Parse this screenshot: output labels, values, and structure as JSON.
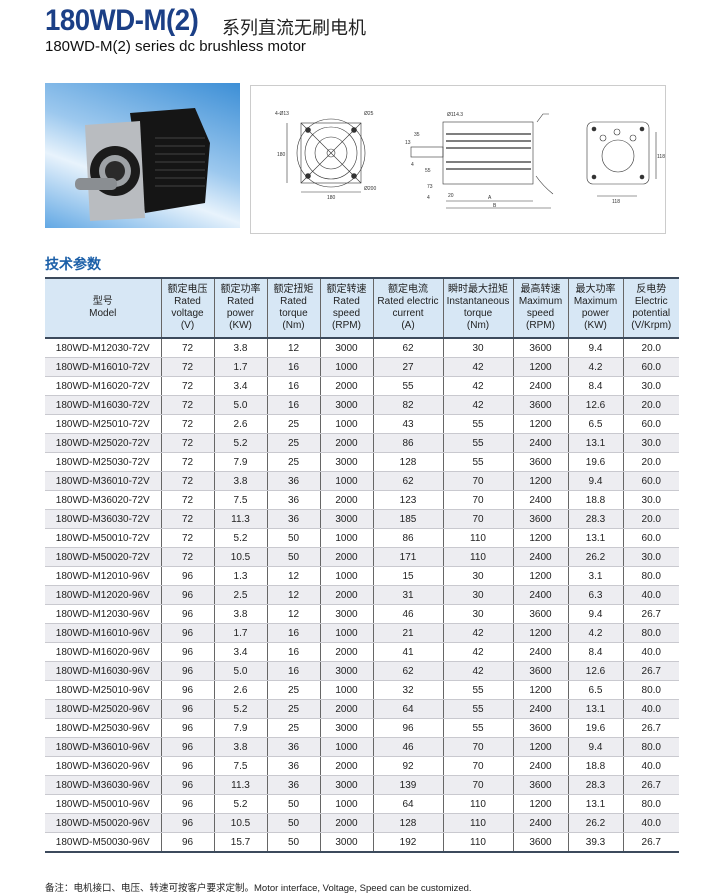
{
  "header": {
    "model_title": "180WD-M(2)",
    "title_cn": "系列直流无刷电机",
    "subtitle": "180WD-M(2) series dc brushless motor"
  },
  "drawing_labels": {
    "front": [
      "4-Ø13",
      "Ø25",
      "180",
      "180",
      "Ø200"
    ],
    "side": [
      "Ø114.3",
      "35",
      "13",
      "4",
      "55",
      "73",
      "4",
      "20",
      "A",
      "B"
    ],
    "rear": [
      "118",
      "118"
    ]
  },
  "section_title": "技术参数",
  "table": {
    "headers": [
      [
        "型号",
        "Model"
      ],
      [
        "额定电压",
        "Rated",
        "voltage",
        "(V)"
      ],
      [
        "额定功率",
        "Rated",
        "power",
        "(KW)"
      ],
      [
        "额定扭矩",
        "Rated",
        "torque",
        "(Nm)"
      ],
      [
        "额定转速",
        "Rated",
        "speed",
        "(RPM)"
      ],
      [
        "额定电流",
        "Rated electric",
        "current",
        "(A)"
      ],
      [
        "瞬时最大扭矩",
        "Instantaneous",
        "torque",
        "(Nm)"
      ],
      [
        "最高转速",
        "Maximum",
        "speed",
        "(RPM)"
      ],
      [
        "最大功率",
        "Maximum",
        "power",
        "(KW)"
      ],
      [
        "反电势",
        "Electric",
        "potential",
        "(V/Krpm)"
      ]
    ],
    "rows": [
      [
        "180WD-M12030-72V",
        "72",
        "3.8",
        "12",
        "3000",
        "62",
        "30",
        "3600",
        "9.4",
        "20.0"
      ],
      [
        "180WD-M16010-72V",
        "72",
        "1.7",
        "16",
        "1000",
        "27",
        "42",
        "1200",
        "4.2",
        "60.0"
      ],
      [
        "180WD-M16020-72V",
        "72",
        "3.4",
        "16",
        "2000",
        "55",
        "42",
        "2400",
        "8.4",
        "30.0"
      ],
      [
        "180WD-M16030-72V",
        "72",
        "5.0",
        "16",
        "3000",
        "82",
        "42",
        "3600",
        "12.6",
        "20.0"
      ],
      [
        "180WD-M25010-72V",
        "72",
        "2.6",
        "25",
        "1000",
        "43",
        "55",
        "1200",
        "6.5",
        "60.0"
      ],
      [
        "180WD-M25020-72V",
        "72",
        "5.2",
        "25",
        "2000",
        "86",
        "55",
        "2400",
        "13.1",
        "30.0"
      ],
      [
        "180WD-M25030-72V",
        "72",
        "7.9",
        "25",
        "3000",
        "128",
        "55",
        "3600",
        "19.6",
        "20.0"
      ],
      [
        "180WD-M36010-72V",
        "72",
        "3.8",
        "36",
        "1000",
        "62",
        "70",
        "1200",
        "9.4",
        "60.0"
      ],
      [
        "180WD-M36020-72V",
        "72",
        "7.5",
        "36",
        "2000",
        "123",
        "70",
        "2400",
        "18.8",
        "30.0"
      ],
      [
        "180WD-M36030-72V",
        "72",
        "11.3",
        "36",
        "3000",
        "185",
        "70",
        "3600",
        "28.3",
        "20.0"
      ],
      [
        "180WD-M50010-72V",
        "72",
        "5.2",
        "50",
        "1000",
        "86",
        "110",
        "1200",
        "13.1",
        "60.0"
      ],
      [
        "180WD-M50020-72V",
        "72",
        "10.5",
        "50",
        "2000",
        "171",
        "110",
        "2400",
        "26.2",
        "30.0"
      ],
      [
        "180WD-M12010-96V",
        "96",
        "1.3",
        "12",
        "1000",
        "15",
        "30",
        "1200",
        "3.1",
        "80.0"
      ],
      [
        "180WD-M12020-96V",
        "96",
        "2.5",
        "12",
        "2000",
        "31",
        "30",
        "2400",
        "6.3",
        "40.0"
      ],
      [
        "180WD-M12030-96V",
        "96",
        "3.8",
        "12",
        "3000",
        "46",
        "30",
        "3600",
        "9.4",
        "26.7"
      ],
      [
        "180WD-M16010-96V",
        "96",
        "1.7",
        "16",
        "1000",
        "21",
        "42",
        "1200",
        "4.2",
        "80.0"
      ],
      [
        "180WD-M16020-96V",
        "96",
        "3.4",
        "16",
        "2000",
        "41",
        "42",
        "2400",
        "8.4",
        "40.0"
      ],
      [
        "180WD-M16030-96V",
        "96",
        "5.0",
        "16",
        "3000",
        "62",
        "42",
        "3600",
        "12.6",
        "26.7"
      ],
      [
        "180WD-M25010-96V",
        "96",
        "2.6",
        "25",
        "1000",
        "32",
        "55",
        "1200",
        "6.5",
        "80.0"
      ],
      [
        "180WD-M25020-96V",
        "96",
        "5.2",
        "25",
        "2000",
        "64",
        "55",
        "2400",
        "13.1",
        "40.0"
      ],
      [
        "180WD-M25030-96V",
        "96",
        "7.9",
        "25",
        "3000",
        "96",
        "55",
        "3600",
        "19.6",
        "26.7"
      ],
      [
        "180WD-M36010-96V",
        "96",
        "3.8",
        "36",
        "1000",
        "46",
        "70",
        "1200",
        "9.4",
        "80.0"
      ],
      [
        "180WD-M36020-96V",
        "96",
        "7.5",
        "36",
        "2000",
        "92",
        "70",
        "2400",
        "18.8",
        "40.0"
      ],
      [
        "180WD-M36030-96V",
        "96",
        "11.3",
        "36",
        "3000",
        "139",
        "70",
        "3600",
        "28.3",
        "26.7"
      ],
      [
        "180WD-M50010-96V",
        "96",
        "5.2",
        "50",
        "1000",
        "64",
        "110",
        "1200",
        "13.1",
        "80.0"
      ],
      [
        "180WD-M50020-96V",
        "96",
        "10.5",
        "50",
        "2000",
        "128",
        "110",
        "2400",
        "26.2",
        "40.0"
      ],
      [
        "180WD-M50030-96V",
        "96",
        "15.7",
        "50",
        "3000",
        "192",
        "110",
        "3600",
        "39.3",
        "26.7"
      ]
    ]
  },
  "note": "备注：电机接口、电压、转速可按客户要求定制。Motor interface, Voltage, Speed can be customized.",
  "colors": {
    "title": "#1b3f86",
    "section": "#1b5fa8",
    "header_bg": "#d7e7f5",
    "row_alt": "#ededf1"
  }
}
